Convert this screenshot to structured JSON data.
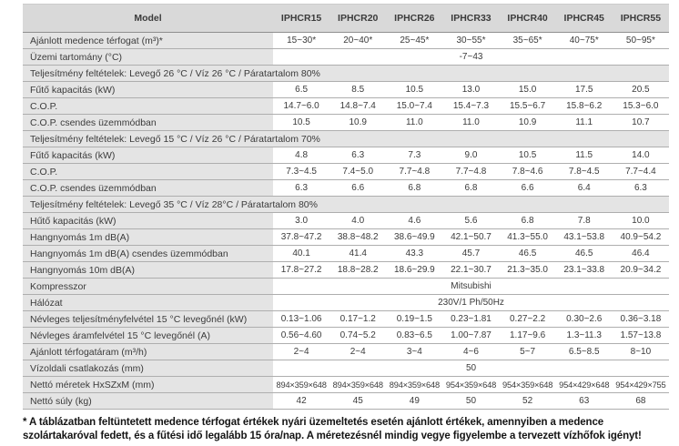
{
  "table": {
    "columns": [
      "Model",
      "IPHCR15",
      "IPHCR20",
      "IPHCR26",
      "IPHCR33",
      "IPHCR40",
      "IPHCR45",
      "IPHCR55"
    ],
    "rows": [
      {
        "type": "data",
        "label": "Ajánlott medence térfogat (m³)*",
        "values": [
          "15~30*",
          "20~40*",
          "25~45*",
          "30~55*",
          "35~65*",
          "40~75*",
          "50~95*"
        ]
      },
      {
        "type": "span",
        "label": "Üzemi tartomány (°C)",
        "value": "-7~43"
      },
      {
        "type": "section",
        "label": "Teljesítmény feltételek: Levegő 26 °C / Víz 26 °C / Páratartalom 80%"
      },
      {
        "type": "data",
        "label": "Fűtő kapacitás (kW)",
        "values": [
          "6.5",
          "8.5",
          "10.5",
          "13.0",
          "15.0",
          "17.5",
          "20.5"
        ]
      },
      {
        "type": "data",
        "label": "C.O.P.",
        "values": [
          "14.7~6.0",
          "14.8~7.4",
          "15.0~7.4",
          "15.4~7.3",
          "15.5~6.7",
          "15.8~6.2",
          "15.3~6.0"
        ]
      },
      {
        "type": "data",
        "label": "C.O.P. csendes üzemmódban",
        "values": [
          "10.5",
          "10.9",
          "11.0",
          "11.0",
          "10.9",
          "11.1",
          "10.7"
        ]
      },
      {
        "type": "section",
        "label": "Teljesítmény feltételek: Levegő 15 °C / Víz 26 °C / Páratartalom 70%"
      },
      {
        "type": "data",
        "label": "Fűtő kapacitás (kW)",
        "values": [
          "4.8",
          "6.3",
          "7.3",
          "9.0",
          "10.5",
          "11.5",
          "14.0"
        ]
      },
      {
        "type": "data",
        "label": "C.O.P.",
        "values": [
          "7.3~4.5",
          "7.4~5.0",
          "7.7~4.8",
          "7.7~4.8",
          "7.8~4.6",
          "7.8~4.5",
          "7.7~4.4"
        ]
      },
      {
        "type": "data",
        "label": "C.O.P. csendes üzemmódban",
        "values": [
          "6.3",
          "6.6",
          "6.8",
          "6.8",
          "6.6",
          "6.4",
          "6.3"
        ]
      },
      {
        "type": "section",
        "label": "Teljesítmény feltételek: Levegő 35 °C / Víz 28°C / Páratartalom 80%"
      },
      {
        "type": "data",
        "label": "Hűtő kapacitás (kW)",
        "values": [
          "3.0",
          "4.0",
          "4.6",
          "5.6",
          "6.8",
          "7.8",
          "10.0"
        ]
      },
      {
        "type": "data",
        "label": "Hangnyomás 1m dB(A)",
        "values": [
          "37.8~47.2",
          "38.8~48.2",
          "38.6~49.9",
          "42.1~50.7",
          "41.3~55.0",
          "43.1~53.8",
          "40.9~54.2"
        ]
      },
      {
        "type": "data",
        "label": "Hangnyomás 1m dB(A) csendes üzemmódban",
        "values": [
          "40.1",
          "41.4",
          "43.3",
          "45.7",
          "46.5",
          "46.5",
          "46.4"
        ]
      },
      {
        "type": "data",
        "label": "Hangnyomás 10m dB(A)",
        "values": [
          "17.8~27.2",
          "18.8~28.2",
          "18.6~29.9",
          "22.1~30.7",
          "21.3~35.0",
          "23.1~33.8",
          "20.9~34.2"
        ]
      },
      {
        "type": "span",
        "label": "Kompresszor",
        "value": "Mitsubishi"
      },
      {
        "type": "span",
        "label": "Hálózat",
        "value": "230V/1 Ph/50Hz"
      },
      {
        "type": "data",
        "label": "Névleges teljesítményfelvétel 15 °C levegőnél (kW)",
        "values": [
          "0.13~1.06",
          "0.17~1.2",
          "0.19~1.5",
          "0.23~1.81",
          "0.27~2.2",
          "0.30~2.6",
          "0.36~3.18"
        ]
      },
      {
        "type": "data",
        "label": "Névleges áramfelvétel 15 °C levegőnél (A)",
        "values": [
          "0.56~4.60",
          "0.74~5.2",
          "0.83~6.5",
          "1.00~7.87",
          "1.17~9.6",
          "1.3~11.3",
          "1.57~13.8"
        ]
      },
      {
        "type": "data",
        "label": "Ajánlott térfogatáram (m³/h)",
        "values": [
          "2~4",
          "2~4",
          "3~4",
          "4~6",
          "5~7",
          "6.5~8.5",
          "8~10"
        ]
      },
      {
        "type": "span",
        "label": "Vízoldali csatlakozás (mm)",
        "value": "50"
      },
      {
        "type": "data",
        "label": "Nettó méretek HxSZxM (mm)",
        "values": [
          "894×359×648",
          "894×359×648",
          "894×359×648",
          "954×359×648",
          "954×359×648",
          "954×429×648",
          "954×429×755"
        ]
      },
      {
        "type": "data",
        "label": "Nettó súly (kg)",
        "values": [
          "42",
          "45",
          "49",
          "50",
          "52",
          "63",
          "68"
        ]
      }
    ]
  },
  "footnote": "* A táblázatban feltüntetett medence térfogat értékek nyári üzemeltetés esetén ajánlott értékek, amennyiben a medence szolártakaróval fedett, és a fűtési idő legalább 15 óra/nap. A méretezésnél mindig vegye figyelembe a tervezett vízhőfok igényt!",
  "colors": {
    "header_bg": "#d9d9d9",
    "label_bg": "#e4e4e4",
    "row_border": "#aeaeae",
    "header_border": "#8f8f8f",
    "text": "#3b3b3b",
    "footnote_text": "#141414"
  }
}
